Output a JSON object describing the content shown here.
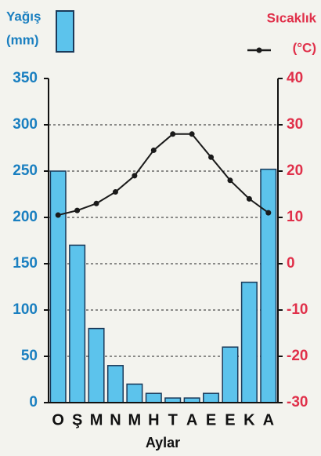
{
  "chart_data": {
    "type": "bar-line",
    "categories": [
      "O",
      "Ş",
      "M",
      "N",
      "M",
      "H",
      "T",
      "A",
      "E",
      "E",
      "K",
      "A"
    ],
    "series": [
      {
        "name": "Yağış",
        "color": "#5cc3ec",
        "type": "bar",
        "axis": "y",
        "values": [
          250,
          170,
          80,
          40,
          20,
          10,
          5,
          5,
          10,
          60,
          130,
          252
        ]
      },
      {
        "name": "Sıcaklık",
        "color": "#1a1a1a",
        "type": "line",
        "axis": "y2",
        "values": [
          10.5,
          11.5,
          13,
          15.5,
          19,
          24.5,
          28,
          28,
          23,
          18,
          14,
          11
        ]
      }
    ],
    "ylabel": "(mm)",
    "y2label": "(°C)",
    "xlabel": "Aylar",
    "ylim": [
      0,
      350
    ],
    "yticks": [
      0,
      50,
      100,
      150,
      200,
      250,
      300,
      350
    ],
    "y2lim": [
      -30,
      40
    ],
    "y2ticks": [
      -30,
      -20,
      -10,
      0,
      10,
      20,
      30,
      40
    ],
    "grid": true
  }
}
